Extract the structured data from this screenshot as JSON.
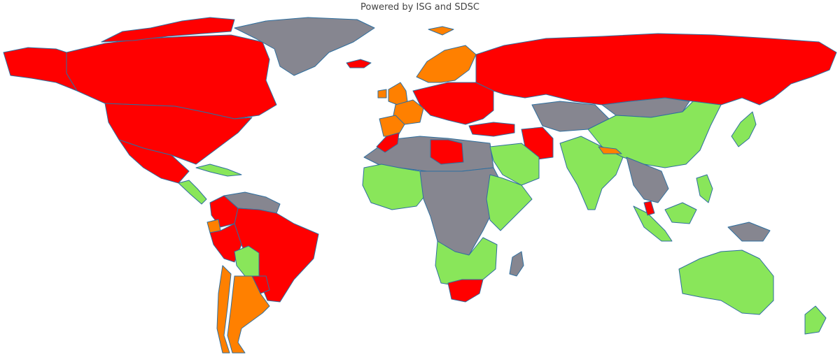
{
  "caption": "Powered by ISG and SDSC",
  "palette": {
    "red": "#ff0000",
    "orange": "#ff8000",
    "green": "#89e65a",
    "gray": "#868690",
    "border": "#2f6f9f",
    "ocean": "#ffffff"
  },
  "regions": [
    {
      "name": "canada",
      "fill": "red"
    },
    {
      "name": "arctic-islands",
      "fill": "red"
    },
    {
      "name": "usa",
      "fill": "red"
    },
    {
      "name": "alaska",
      "fill": "red"
    },
    {
      "name": "mexico",
      "fill": "red"
    },
    {
      "name": "central-america",
      "fill": "green"
    },
    {
      "name": "cuba",
      "fill": "green"
    },
    {
      "name": "greenland",
      "fill": "gray"
    },
    {
      "name": "iceland",
      "fill": "red"
    },
    {
      "name": "venezuela-guianas",
      "fill": "gray"
    },
    {
      "name": "colombia",
      "fill": "red"
    },
    {
      "name": "ecuador",
      "fill": "orange"
    },
    {
      "name": "brazil",
      "fill": "red"
    },
    {
      "name": "peru",
      "fill": "red"
    },
    {
      "name": "bolivia",
      "fill": "green"
    },
    {
      "name": "paraguay",
      "fill": "red"
    },
    {
      "name": "argentina",
      "fill": "orange"
    },
    {
      "name": "chile",
      "fill": "orange"
    },
    {
      "name": "uk-ireland",
      "fill": "orange"
    },
    {
      "name": "scandinavia",
      "fill": "orange"
    },
    {
      "name": "svalbard",
      "fill": "orange"
    },
    {
      "name": "france",
      "fill": "orange"
    },
    {
      "name": "iberia",
      "fill": "orange"
    },
    {
      "name": "central-europe",
      "fill": "red"
    },
    {
      "name": "russia",
      "fill": "red"
    },
    {
      "name": "north-africa-west",
      "fill": "gray"
    },
    {
      "name": "morocco",
      "fill": "red"
    },
    {
      "name": "libya",
      "fill": "red"
    },
    {
      "name": "turkey",
      "fill": "red"
    },
    {
      "name": "iran",
      "fill": "red"
    },
    {
      "name": "saudi-arabia",
      "fill": "green"
    },
    {
      "name": "central-asia",
      "fill": "gray"
    },
    {
      "name": "china",
      "fill": "green"
    },
    {
      "name": "mongolia",
      "fill": "gray"
    },
    {
      "name": "india",
      "fill": "green"
    },
    {
      "name": "nepal",
      "fill": "orange"
    },
    {
      "name": "southeast-asia",
      "fill": "gray"
    },
    {
      "name": "japan",
      "fill": "green"
    },
    {
      "name": "west-africa",
      "fill": "green"
    },
    {
      "name": "central-africa",
      "fill": "gray"
    },
    {
      "name": "east-africa",
      "fill": "green"
    },
    {
      "name": "southern-africa",
      "fill": "green"
    },
    {
      "name": "south-africa",
      "fill": "red"
    },
    {
      "name": "madagascar",
      "fill": "gray"
    },
    {
      "name": "sumatra",
      "fill": "green"
    },
    {
      "name": "borneo",
      "fill": "green"
    },
    {
      "name": "malaysia",
      "fill": "red"
    },
    {
      "name": "philippines",
      "fill": "green"
    },
    {
      "name": "new-guinea",
      "fill": "gray"
    },
    {
      "name": "australia",
      "fill": "green"
    },
    {
      "name": "new-zealand",
      "fill": "green"
    }
  ]
}
